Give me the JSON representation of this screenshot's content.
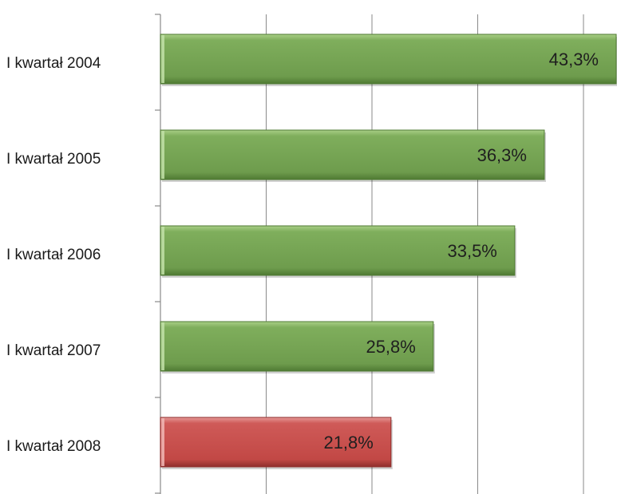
{
  "chart_data": {
    "type": "bar",
    "orientation": "horizontal",
    "categories": [
      "I kwartał 2004",
      "I kwartał 2005",
      "I kwartał 2006",
      "I kwartał 2007",
      "I kwartał 2008"
    ],
    "values": [
      43.3,
      36.3,
      33.5,
      25.8,
      21.8
    ],
    "value_labels": [
      "43,3%",
      "36,3%",
      "33,5%",
      "25,8%",
      "21,8%"
    ],
    "title": "",
    "xlabel": "",
    "ylabel": "",
    "xlim": [
      0,
      45
    ],
    "grid": true,
    "legend": "none",
    "colors": {
      "default_bar": "#77a355",
      "highlight_bar": "#c9504f",
      "highlight_category": "I kwartał 2008"
    }
  }
}
